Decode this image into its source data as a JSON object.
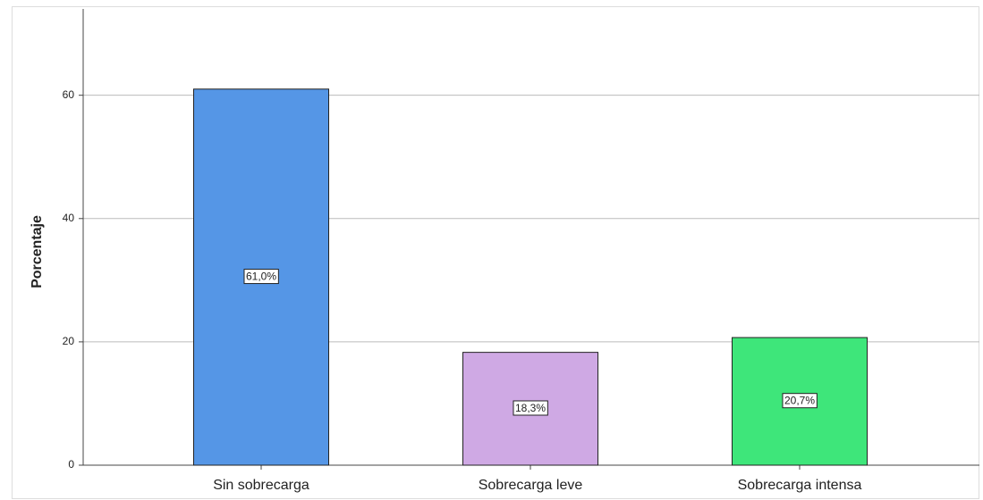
{
  "chart_data": {
    "type": "bar",
    "y_label": "Porcentaje",
    "categories": [
      "Sin sobrecarga",
      "Sobrecarga leve",
      "Sobrecarga intensa"
    ],
    "values": [
      61.0,
      18.3,
      20.7
    ],
    "value_labels": [
      "61,0%",
      "18,3%",
      "20,7%"
    ],
    "colors": [
      "#5596e6",
      "#cfa9e4",
      "#3ee67a"
    ],
    "ylim": [
      0,
      74
    ],
    "yticks": [
      0,
      20,
      40,
      60
    ],
    "grid": true
  }
}
